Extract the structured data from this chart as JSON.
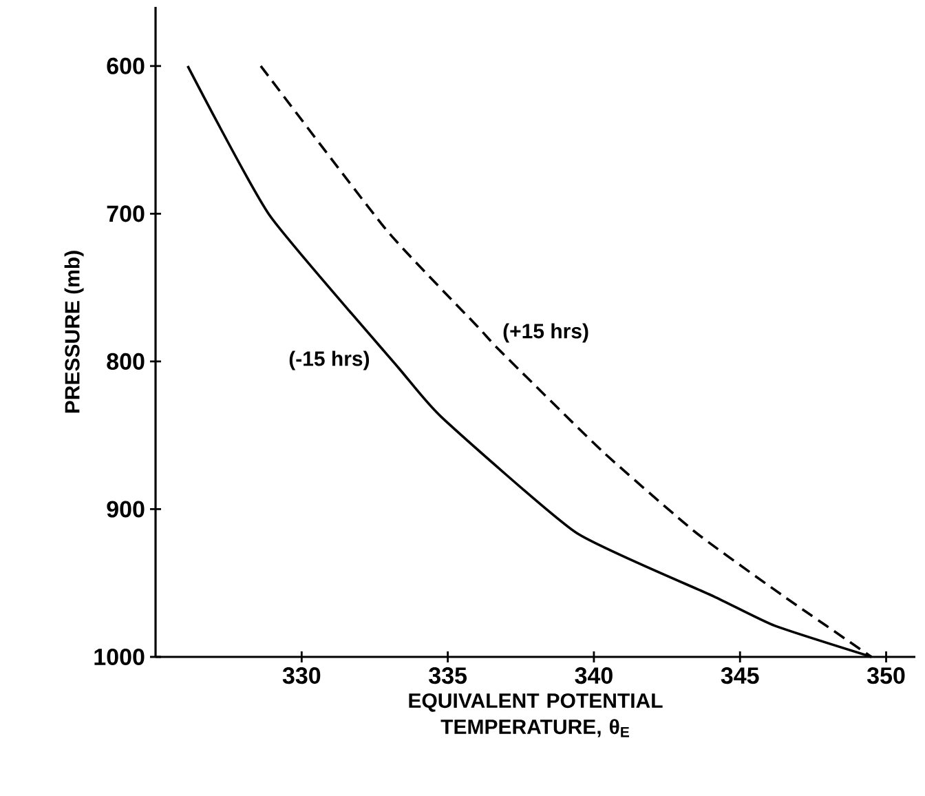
{
  "chart_data": {
    "type": "line",
    "xlabel": "EQUIVALENT   POTENTIAL TEMPERATURE, θ$_{E}$",
    "ylabel": "PRESSURE  (mb)",
    "xlim": [
      325,
      351
    ],
    "ylim": [
      1000,
      560
    ],
    "xticks": [
      330,
      335,
      340,
      345,
      350
    ],
    "yticks": [
      600,
      700,
      800,
      900,
      1000
    ],
    "grid": false,
    "legend": false,
    "series": [
      {
        "name": "(+15 hrs)",
        "color": "#000000",
        "line_style": "dashed",
        "x": [
          328.6,
          332.9,
          336.0,
          336.8,
          340.3,
          343.5,
          346.5,
          349.5
        ],
        "values": [
          600,
          711,
          776,
          793,
          861,
          916,
          959,
          1000
        ]
      },
      {
        "name": "(-15 hrs)",
        "color": "#000000",
        "line_style": "solid",
        "x": [
          326.1,
          328.9,
          333.3,
          334.8,
          339.4,
          344.1,
          346.2,
          349.5
        ],
        "values": [
          600,
          701,
          804,
          838,
          916,
          959,
          979,
          1000
        ]
      }
    ]
  }
}
